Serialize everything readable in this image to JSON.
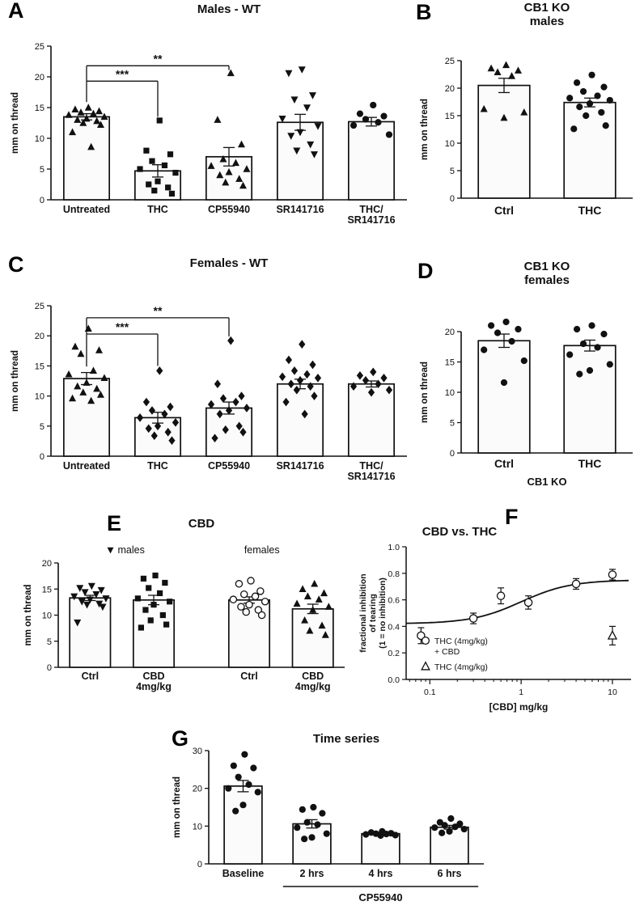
{
  "figure": {
    "background": "#ffffff",
    "ink": "#111111",
    "bar_fill": "#fbfbfb"
  },
  "panels": {
    "A": {
      "letter": "A"
    },
    "B": {
      "letter": "B"
    },
    "C": {
      "letter": "C"
    },
    "D": {
      "letter": "D"
    },
    "E": {
      "letter": "E"
    },
    "F": {
      "letter": "F"
    },
    "G": {
      "letter": "G"
    }
  },
  "chart_data": [
    {
      "id": "A",
      "type": "bar",
      "title": "Males - WT",
      "ylabel": "mm on thread",
      "ylim": [
        0,
        25
      ],
      "yticks": [
        0,
        5,
        10,
        15,
        20,
        25
      ],
      "ytick_labels": [
        "0",
        "5",
        "10",
        "15",
        "20",
        "25"
      ],
      "categories": [
        "Untreated",
        "THC",
        "CP55940",
        "SR141716",
        "THC/\nSR141716"
      ],
      "markers": [
        "triangle-up",
        "square",
        "triangle-up",
        "triangle-down",
        "circle"
      ],
      "bars": [
        13.5,
        4.7,
        7.0,
        12.6,
        12.7
      ],
      "errors": [
        0.5,
        1.0,
        1.5,
        1.3,
        0.7
      ],
      "points": [
        [
          15.0,
          14.7,
          14.4,
          14.2,
          14.0,
          13.8,
          13.5,
          13.2,
          13.0,
          12.8,
          12.5,
          12.2,
          11.0,
          8.6
        ],
        [
          12.9,
          8.0,
          7.4,
          6.3,
          5.6,
          5.0,
          4.4,
          3.0,
          2.5,
          2.0,
          1.5,
          1.0
        ],
        [
          20.6,
          13.0,
          9.0,
          6.6,
          6.0,
          5.5,
          5.0,
          4.5,
          4.0,
          3.4,
          2.8,
          2.3
        ],
        [
          21.2,
          20.6,
          17.0,
          16.3,
          15.0,
          13.2,
          12.0,
          11.0,
          10.4,
          9.0,
          8.0,
          7.4
        ],
        [
          15.4,
          14.0,
          13.6,
          13.1,
          12.6,
          12.1,
          10.6
        ]
      ],
      "sig": [
        {
          "from": 0,
          "to": 1,
          "y": 19.3,
          "y1": 15.9,
          "y2": 13.5,
          "label": "***"
        },
        {
          "from": 0,
          "to": 2,
          "y": 21.8,
          "y1": 19.3,
          "y2": 21.1,
          "label": "**"
        }
      ]
    },
    {
      "id": "B",
      "type": "bar",
      "title": "CB1 KO\nmales",
      "ylabel": "mm on thread",
      "ylim": [
        0,
        25
      ],
      "yticks": [
        0,
        5,
        10,
        15,
        20,
        25
      ],
      "ytick_labels": [
        "0",
        "5",
        "10",
        "15",
        "20",
        "25"
      ],
      "categories": [
        "Ctrl",
        "THC"
      ],
      "markers": [
        "triangle-up",
        "circle"
      ],
      "bars": [
        20.5,
        17.4
      ],
      "errors": [
        1.3,
        0.8
      ],
      "points": [
        [
          24.2,
          23.6,
          23.2,
          22.9,
          22.2,
          16.2,
          15.6,
          14.6
        ],
        [
          22.4,
          21.0,
          20.2,
          19.4,
          18.6,
          18.2,
          17.8,
          17.2,
          16.6,
          15.6,
          15.0,
          13.2,
          12.6
        ]
      ]
    },
    {
      "id": "C",
      "type": "bar",
      "title": "Females - WT",
      "ylabel": "mm on thread",
      "ylim": [
        0,
        25
      ],
      "yticks": [
        0,
        5,
        10,
        15,
        20,
        25
      ],
      "ytick_labels": [
        "0",
        "5",
        "10",
        "15",
        "20",
        "25"
      ],
      "categories": [
        "Untreated",
        "THC",
        "CP55940",
        "SR141716",
        "THC/\nSR141716"
      ],
      "markers": [
        "triangle-up",
        "diamond",
        "diamond",
        "diamond",
        "diamond"
      ],
      "bars": [
        12.9,
        6.4,
        8.0,
        12.0,
        12.0
      ],
      "errors": [
        1.0,
        0.9,
        1.0,
        0.8,
        0.5
      ],
      "points": [
        [
          21.2,
          18.2,
          17.6,
          17.0,
          14.2,
          13.6,
          13.0,
          12.2,
          11.6,
          11.2,
          10.6,
          10.2,
          9.6,
          9.2
        ],
        [
          14.2,
          9.0,
          8.2,
          7.6,
          7.0,
          6.4,
          5.6,
          5.0,
          4.6,
          4.0,
          3.4,
          2.6
        ],
        [
          19.2,
          12.0,
          10.0,
          9.6,
          9.0,
          8.6,
          8.0,
          7.6,
          7.0,
          5.0,
          4.4,
          4.0,
          3.0
        ],
        [
          18.6,
          16.0,
          15.2,
          14.2,
          13.6,
          13.2,
          13.0,
          12.6,
          12.0,
          11.6,
          11.0,
          10.0,
          9.0,
          7.0
        ],
        [
          14.0,
          13.4,
          13.0,
          12.6,
          12.0,
          11.6,
          11.0,
          10.6
        ]
      ],
      "sig": [
        {
          "from": 0,
          "to": 1,
          "y": 20.3,
          "y1": 14.9,
          "y2": 15.0,
          "label": "***"
        },
        {
          "from": 0,
          "to": 2,
          "y": 23.0,
          "y1": 20.3,
          "y2": 19.9,
          "label": "**"
        }
      ]
    },
    {
      "id": "D",
      "type": "bar",
      "title": "CB1 KO\nfemales",
      "ylabel": "mm on thread",
      "ylim": [
        0,
        20
      ],
      "yticks": [
        0,
        5,
        10,
        15,
        20
      ],
      "ytick_labels": [
        "0",
        "5",
        "10",
        "15",
        "20"
      ],
      "categories": [
        "Ctrl",
        "THC"
      ],
      "markers": [
        "circle",
        "circle"
      ],
      "bars": [
        18.5,
        17.7
      ],
      "errors": [
        1.1,
        0.9
      ],
      "points": [
        [
          21.6,
          21.0,
          20.4,
          19.8,
          18.4,
          17.0,
          15.2,
          11.6
        ],
        [
          21.0,
          20.4,
          19.6,
          18.0,
          17.4,
          16.2,
          14.6,
          13.6,
          13.0
        ]
      ],
      "xgroup": {
        "from": 0,
        "to": 1,
        "label": "CB1 KO",
        "line": false
      }
    },
    {
      "id": "E",
      "type": "bar",
      "title": "CBD",
      "ylabel": "mm on thread",
      "ylim": [
        0,
        20
      ],
      "yticks": [
        0,
        5,
        10,
        15,
        20
      ],
      "ytick_labels": [
        "0",
        "5",
        "10",
        "15",
        "20"
      ],
      "categories": [
        "Ctrl",
        "CBD\n4mg/kg",
        "Ctrl",
        "CBD\n4mg/kg"
      ],
      "markers": [
        "triangle-down",
        "square",
        "circle-open",
        "triangle-up"
      ],
      "bars": [
        13.3,
        12.9,
        12.9,
        11.2
      ],
      "errors": [
        0.5,
        0.9,
        0.6,
        0.9
      ],
      "gapAfter": [
        1
      ],
      "points": [
        [
          15.6,
          15.2,
          14.8,
          14.4,
          14.0,
          13.6,
          13.2,
          13.0,
          12.6,
          12.2,
          12.0,
          11.6,
          8.6
        ],
        [
          17.6,
          17.0,
          16.2,
          15.2,
          14.2,
          13.2,
          12.6,
          12.0,
          11.0,
          10.0,
          9.0,
          8.2,
          7.6
        ],
        [
          16.6,
          16.0,
          14.6,
          14.0,
          13.6,
          13.0,
          12.6,
          12.0,
          11.6,
          11.0,
          10.6,
          10.0
        ],
        [
          16.0,
          15.0,
          14.2,
          13.6,
          13.0,
          12.2,
          11.6,
          11.0,
          9.0,
          8.0,
          7.0,
          6.2
        ]
      ],
      "annotations": [
        {
          "text": "males",
          "marker": "triangle-down",
          "u": 0.82
        },
        {
          "text": "females",
          "marker": null,
          "u": 3.2
        }
      ]
    },
    {
      "id": "F",
      "type": "line",
      "title": "CBD vs. THC",
      "ylabel_lines": [
        "fractional inhibition",
        "of tearing",
        "(1 = no inhibition)"
      ],
      "xlabel": "[CBD] mg/kg",
      "ylim": [
        0,
        1
      ],
      "yticks": [
        0,
        0.2,
        0.4,
        0.6,
        0.8,
        1
      ],
      "ytick_labels": [
        "0.0",
        "0.2",
        "0.4",
        "0.6",
        "0.8",
        "1.0"
      ],
      "xlim": [
        0.055,
        16
      ],
      "xticks": [
        0.1,
        1,
        10
      ],
      "xtick_labels": [
        "0.1",
        "1",
        "10"
      ],
      "series": [
        {
          "name": "THC (4mg/kg)\n+ CBD",
          "marker": "circle-open",
          "x": [
            0.08,
            0.3,
            0.6,
            1.2,
            4,
            10
          ],
          "y": [
            0.33,
            0.46,
            0.63,
            0.58,
            0.72,
            0.79
          ],
          "err": [
            0.06,
            0.04,
            0.06,
            0.05,
            0.04,
            0.04
          ]
        },
        {
          "name": "THC (4mg/kg)",
          "marker": "triangle-open",
          "x": [
            10
          ],
          "y": [
            0.33
          ],
          "err": [
            0.07
          ]
        }
      ],
      "fit": {
        "bottom": 0.42,
        "top": 0.75,
        "ec50": 1.0,
        "hill": 1.6
      }
    },
    {
      "id": "G",
      "type": "bar",
      "title": "Time series",
      "ylabel": "mm on thread",
      "ylim": [
        0,
        30
      ],
      "yticks": [
        0,
        10,
        20,
        30
      ],
      "ytick_labels": [
        "0",
        "10",
        "20",
        "30"
      ],
      "categories": [
        "Baseline",
        "2 hrs",
        "4 hrs",
        "6 hrs"
      ],
      "markers": [
        "circle",
        "circle",
        "circle",
        "circle"
      ],
      "bars": [
        20.6,
        10.6,
        8.0,
        9.7
      ],
      "errors": [
        1.5,
        1.1,
        0.3,
        0.5
      ],
      "points": [
        [
          29.0,
          26.0,
          25.4,
          23.0,
          21.0,
          20.0,
          19.0,
          15.6,
          14.0
        ],
        [
          15.0,
          14.4,
          13.4,
          11.0,
          10.4,
          9.6,
          8.0,
          7.0,
          6.6
        ],
        [
          8.6,
          8.3,
          8.1,
          8.0,
          7.9,
          7.8,
          7.6,
          7.5
        ],
        [
          12.0,
          11.0,
          10.6,
          10.2,
          9.8,
          9.6,
          9.2,
          8.6,
          8.2
        ]
      ],
      "xgroup": {
        "from": 1,
        "to": 3,
        "label": "CP55940",
        "line": true
      }
    }
  ]
}
